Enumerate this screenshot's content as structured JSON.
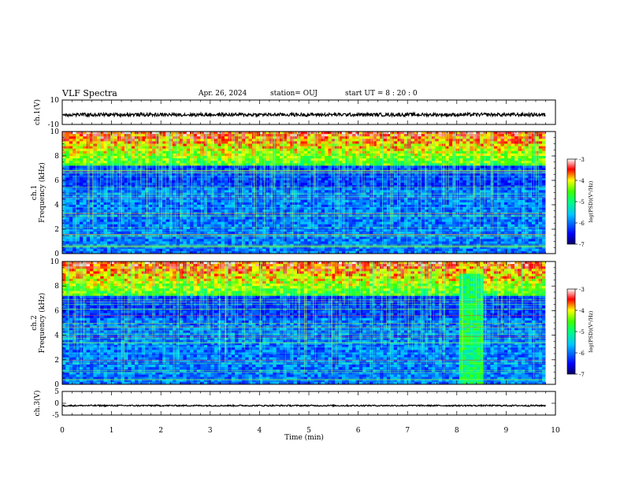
{
  "header": {
    "title": "VLF Spectra",
    "date": "Apr. 26, 2024",
    "station": "station= OUJ",
    "start": "start  UT  =   8  : 20 : 0"
  },
  "chart_data": [
    {
      "type": "line",
      "ylabel": "ch.1(V)",
      "ylim": [
        -10,
        10
      ],
      "yticks": [
        "10",
        "-10"
      ],
      "description_level_v": -2,
      "series": [
        {
          "values_baseline": -2
        }
      ]
    },
    {
      "type": "heatmap",
      "ylabel": "ch.1\nFrequency  (kHz)",
      "ylim": [
        0,
        10
      ],
      "yticks": [
        "0",
        "2",
        "4",
        "6",
        "8",
        "10"
      ],
      "colorbar": {
        "label": "log(PSD)(V²/Hz)",
        "range": [
          -7,
          -3
        ],
        "ticks": [
          "-3",
          "-4",
          "-5",
          "-6",
          "-7"
        ]
      }
    },
    {
      "type": "heatmap",
      "ylabel": "ch.2\nFrequency  (kHz)",
      "ylim": [
        0,
        10
      ],
      "yticks": [
        "0",
        "2",
        "4",
        "6",
        "8",
        "10"
      ],
      "broadband_burst_min": [
        8.0,
        8.5
      ],
      "colorbar": {
        "label": "log(PSD)(V²/Hz)",
        "range": [
          -7,
          -3
        ],
        "ticks": [
          "-3",
          "-4",
          "-5",
          "-6",
          "-7"
        ]
      }
    },
    {
      "type": "line",
      "ylabel": "ch.3(V)",
      "ylim": [
        -5,
        5
      ],
      "yticks": [
        "5",
        "0",
        "-5"
      ],
      "series": [
        {
          "values_baseline": -1
        }
      ]
    }
  ],
  "xaxis": {
    "label": "Time  (min)",
    "range": [
      0,
      10
    ],
    "ticks": [
      "0",
      "1",
      "2",
      "3",
      "4",
      "5",
      "6",
      "7",
      "8",
      "9",
      "10"
    ]
  }
}
